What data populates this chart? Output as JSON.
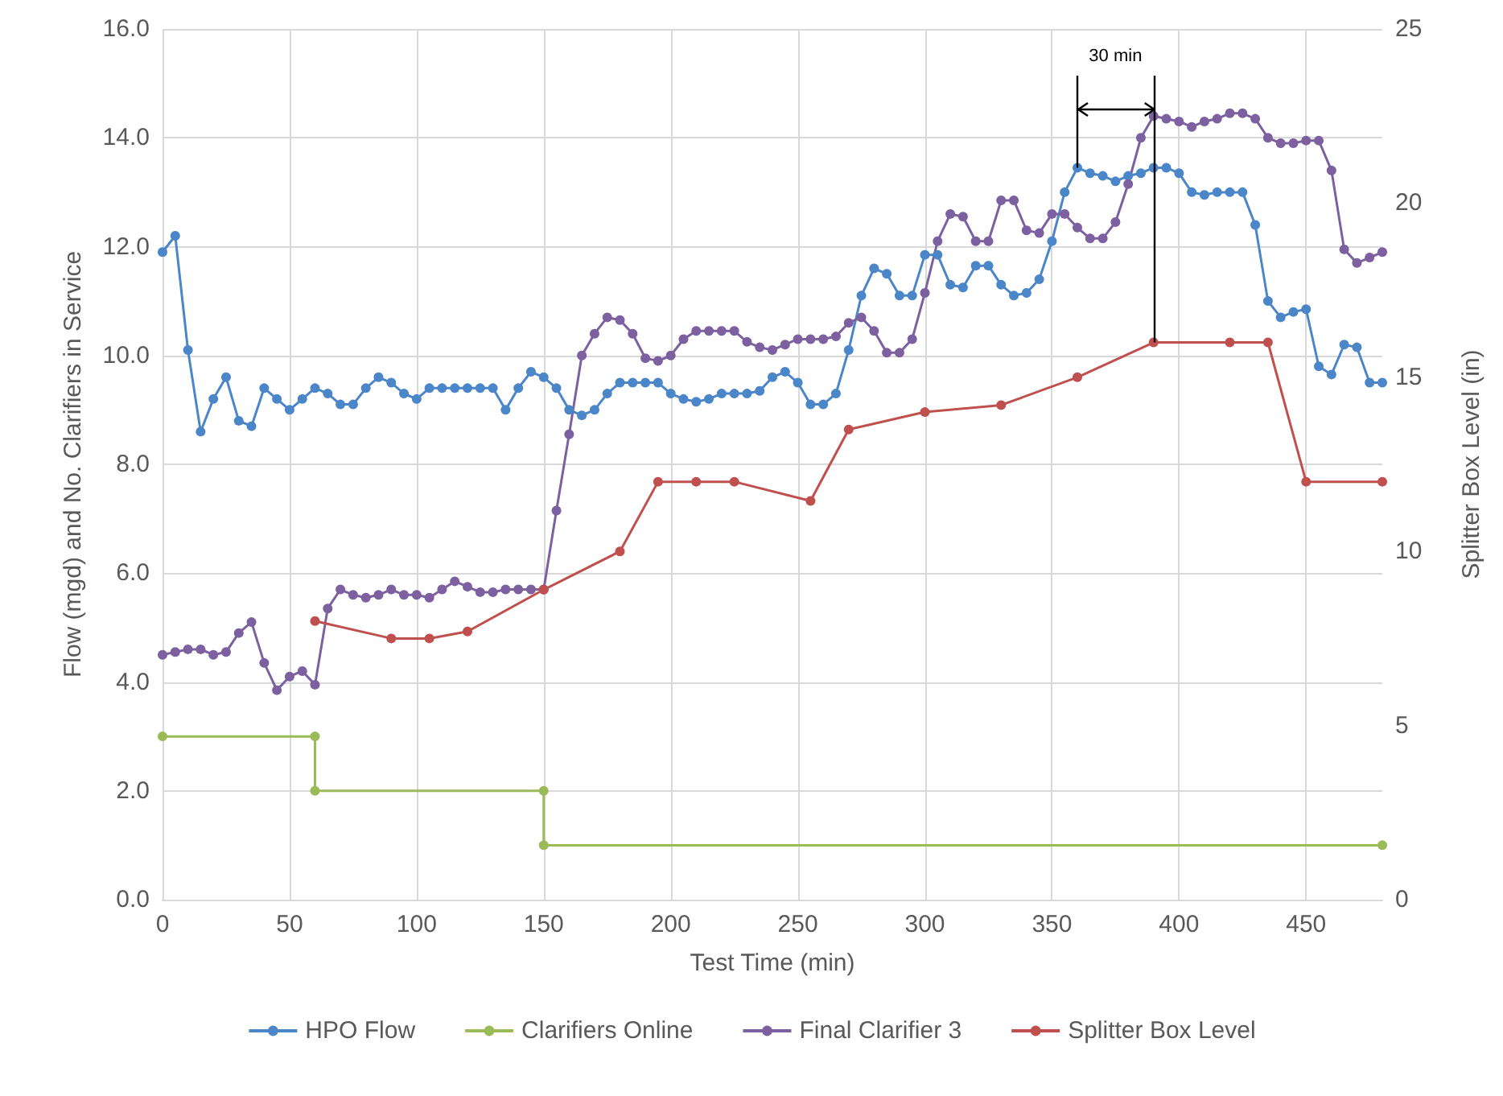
{
  "chart_data": {
    "type": "line",
    "xlabel": "Test Time (min)",
    "ylabel": "Flow (mgd) and No. Clarifiers in Service",
    "y2label": "Splitter Box Level (in)",
    "xlim": [
      0,
      480
    ],
    "xticks": [
      0,
      50,
      100,
      150,
      200,
      250,
      300,
      350,
      400,
      450
    ],
    "ylim": [
      0,
      16
    ],
    "yticks": [
      {
        "value": 0,
        "label": "0.0"
      },
      {
        "value": 2,
        "label": "2.0"
      },
      {
        "value": 4,
        "label": "4.0"
      },
      {
        "value": 6,
        "label": "6.0"
      },
      {
        "value": 8,
        "label": "8.0"
      },
      {
        "value": 10,
        "label": "10.0"
      },
      {
        "value": 12,
        "label": "12.0"
      },
      {
        "value": 14,
        "label": "14.0"
      },
      {
        "value": 16,
        "label": "16.0"
      }
    ],
    "y2lim": [
      0,
      25
    ],
    "y2ticks": [
      0,
      5,
      10,
      15,
      20,
      25
    ],
    "grid": true,
    "legend": "bottom",
    "marker": "circle",
    "line_style": "solid",
    "annotations": [
      "30 min"
    ],
    "ref_lines": [
      {
        "axis": "x",
        "value": 360,
        "color": "#000000",
        "line_style": "solid"
      },
      {
        "axis": "x",
        "value": 390,
        "color": "#000000",
        "line_style": "solid"
      }
    ],
    "series": [
      {
        "name": "HPO Flow",
        "color": "#4a86c8",
        "x": [
          0,
          5,
          10,
          15,
          20,
          25,
          30,
          35,
          40,
          45,
          50,
          55,
          60,
          65,
          70,
          75,
          80,
          85,
          90,
          95,
          100,
          105,
          110,
          115,
          120,
          125,
          130,
          135,
          140,
          145,
          150,
          155,
          160,
          165,
          170,
          175,
          180,
          185,
          190,
          195,
          200,
          205,
          210,
          215,
          220,
          225,
          230,
          235,
          240,
          245,
          250,
          255,
          260,
          265,
          270,
          275,
          280,
          285,
          290,
          295,
          300,
          305,
          310,
          315,
          320,
          325,
          330,
          335,
          340,
          345,
          350,
          355,
          360,
          365,
          370,
          375,
          380,
          385,
          390,
          395,
          400,
          405,
          410,
          415,
          420,
          425,
          430,
          435,
          440,
          445,
          450,
          455,
          460,
          465,
          470,
          475,
          480
        ],
        "values": [
          11.9,
          12.2,
          10.1,
          8.6,
          9.2,
          9.6,
          8.8,
          8.7,
          9.4,
          9.2,
          9.0,
          9.2,
          9.4,
          9.3,
          9.1,
          9.1,
          9.4,
          9.6,
          9.5,
          9.3,
          9.2,
          9.4,
          9.4,
          9.4,
          9.4,
          9.4,
          9.4,
          9.0,
          9.4,
          9.7,
          9.6,
          9.4,
          9.0,
          8.9,
          9.0,
          9.3,
          9.5,
          9.5,
          9.5,
          9.5,
          9.3,
          9.2,
          9.15,
          9.2,
          9.3,
          9.3,
          9.3,
          9.35,
          9.6,
          9.7,
          9.5,
          9.1,
          9.1,
          9.3,
          10.1,
          11.1,
          11.6,
          11.5,
          11.1,
          11.1,
          11.85,
          11.85,
          11.3,
          11.25,
          11.65,
          11.65,
          11.3,
          11.1,
          11.15,
          11.4,
          12.1,
          13.0,
          13.45,
          13.35,
          13.3,
          13.2,
          13.3,
          13.35,
          13.45,
          13.45,
          13.35,
          13.0,
          12.95,
          13.0,
          13.0,
          13.0,
          12.4,
          11.0,
          10.7,
          10.8,
          10.85,
          9.8,
          9.65,
          10.2,
          10.15,
          9.5,
          9.5
        ]
      },
      {
        "name": "Clarifiers Online",
        "color": "#9bbb59",
        "x": [
          0,
          60,
          60,
          150,
          150,
          480
        ],
        "values": [
          3,
          3,
          2,
          2,
          1,
          1
        ]
      },
      {
        "name": "Final Clarifier 3",
        "color": "#7d60a0",
        "x": [
          0,
          5,
          10,
          15,
          20,
          25,
          30,
          35,
          40,
          45,
          50,
          55,
          60,
          65,
          70,
          75,
          80,
          85,
          90,
          95,
          100,
          105,
          110,
          115,
          120,
          125,
          130,
          135,
          140,
          145,
          150,
          155,
          160,
          165,
          170,
          175,
          180,
          185,
          190,
          195,
          200,
          205,
          210,
          215,
          220,
          225,
          230,
          235,
          240,
          245,
          250,
          255,
          260,
          265,
          270,
          275,
          280,
          285,
          290,
          295,
          300,
          305,
          310,
          315,
          320,
          325,
          330,
          335,
          340,
          345,
          350,
          355,
          360,
          365,
          370,
          375,
          380,
          385,
          390,
          395,
          400,
          405,
          410,
          415,
          420,
          425,
          430,
          435,
          440,
          445,
          450,
          455,
          460,
          465,
          470,
          475,
          480
        ],
        "values": [
          4.5,
          4.55,
          4.6,
          4.6,
          4.5,
          4.55,
          4.9,
          5.1,
          4.35,
          3.85,
          4.1,
          4.2,
          3.95,
          5.35,
          5.7,
          5.6,
          5.55,
          5.6,
          5.7,
          5.6,
          5.6,
          5.55,
          5.7,
          5.85,
          5.75,
          5.65,
          5.65,
          5.7,
          5.7,
          5.7,
          5.7,
          7.15,
          8.55,
          10.0,
          10.4,
          10.7,
          10.65,
          10.4,
          9.95,
          9.9,
          10.0,
          10.3,
          10.45,
          10.45,
          10.45,
          10.45,
          10.25,
          10.15,
          10.1,
          10.2,
          10.3,
          10.3,
          10.3,
          10.35,
          10.6,
          10.7,
          10.45,
          10.05,
          10.05,
          10.3,
          11.15,
          12.1,
          12.6,
          12.55,
          12.1,
          12.1,
          12.85,
          12.85,
          12.3,
          12.25,
          12.6,
          12.6,
          12.35,
          12.15,
          12.15,
          12.45,
          13.15,
          14.0,
          14.4,
          14.35,
          14.3,
          14.2,
          14.3,
          14.35,
          14.45,
          14.45,
          14.35,
          14.0,
          13.9,
          13.9,
          13.95,
          13.95,
          13.4,
          11.95,
          11.7,
          11.8,
          11.9
        ]
      },
      {
        "name": "Splitter Box Level",
        "color": "#c0504d",
        "axis": "y2",
        "x": [
          60,
          90,
          105,
          120,
          150,
          180,
          195,
          210,
          225,
          255,
          270,
          300,
          330,
          360,
          390,
          420,
          435,
          450,
          480
        ],
        "values": [
          8.0,
          7.5,
          7.5,
          7.7,
          8.9,
          10.0,
          12.0,
          12.0,
          12.0,
          11.45,
          13.5,
          14.0,
          14.2,
          15.0,
          16.0,
          16.0,
          16.0,
          12.0,
          12.0
        ]
      }
    ]
  }
}
